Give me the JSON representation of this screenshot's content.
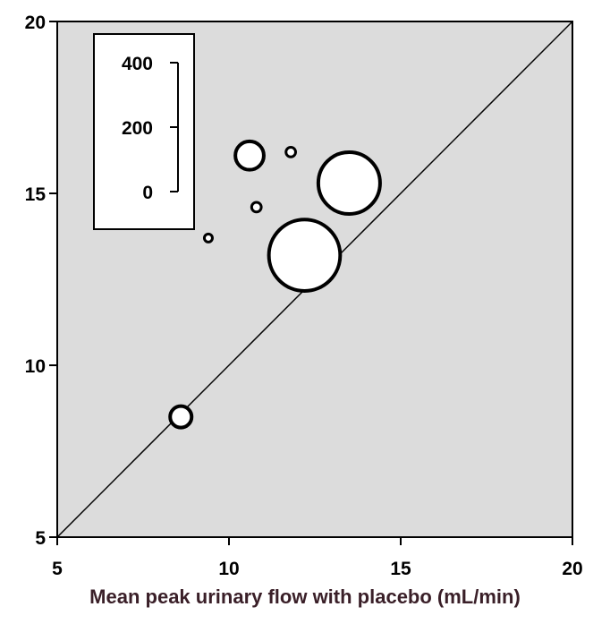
{
  "chart_data": {
    "type": "scatter",
    "title": "",
    "xlabel": "Mean peak urinary flow with placebo (mL/min)",
    "ylabel": "",
    "xlim": [
      5,
      20
    ],
    "ylim": [
      5,
      20
    ],
    "x_ticks": [
      "5",
      "10",
      "15",
      "20"
    ],
    "y_ticks": [
      "5",
      "10",
      "15",
      "20"
    ],
    "grid": false,
    "reference_line": "y = x",
    "size_legend": {
      "ticks": [
        "400",
        "200",
        "0"
      ],
      "placement": "top-left"
    },
    "points": [
      {
        "x": 8.6,
        "y": 8.5,
        "size": 40
      },
      {
        "x": 9.4,
        "y": 13.7,
        "size": 5
      },
      {
        "x": 10.6,
        "y": 16.1,
        "size": 70
      },
      {
        "x": 10.8,
        "y": 14.6,
        "size": 8
      },
      {
        "x": 11.8,
        "y": 16.2,
        "size": 8
      },
      {
        "x": 12.2,
        "y": 13.2,
        "size": 440
      },
      {
        "x": 13.5,
        "y": 15.3,
        "size": 330
      }
    ],
    "colors": {
      "plot_background": "#dcdcdc",
      "marker_fill": "#ffffff",
      "marker_edge": "#000000",
      "xlabel": "#3a1f28"
    }
  }
}
